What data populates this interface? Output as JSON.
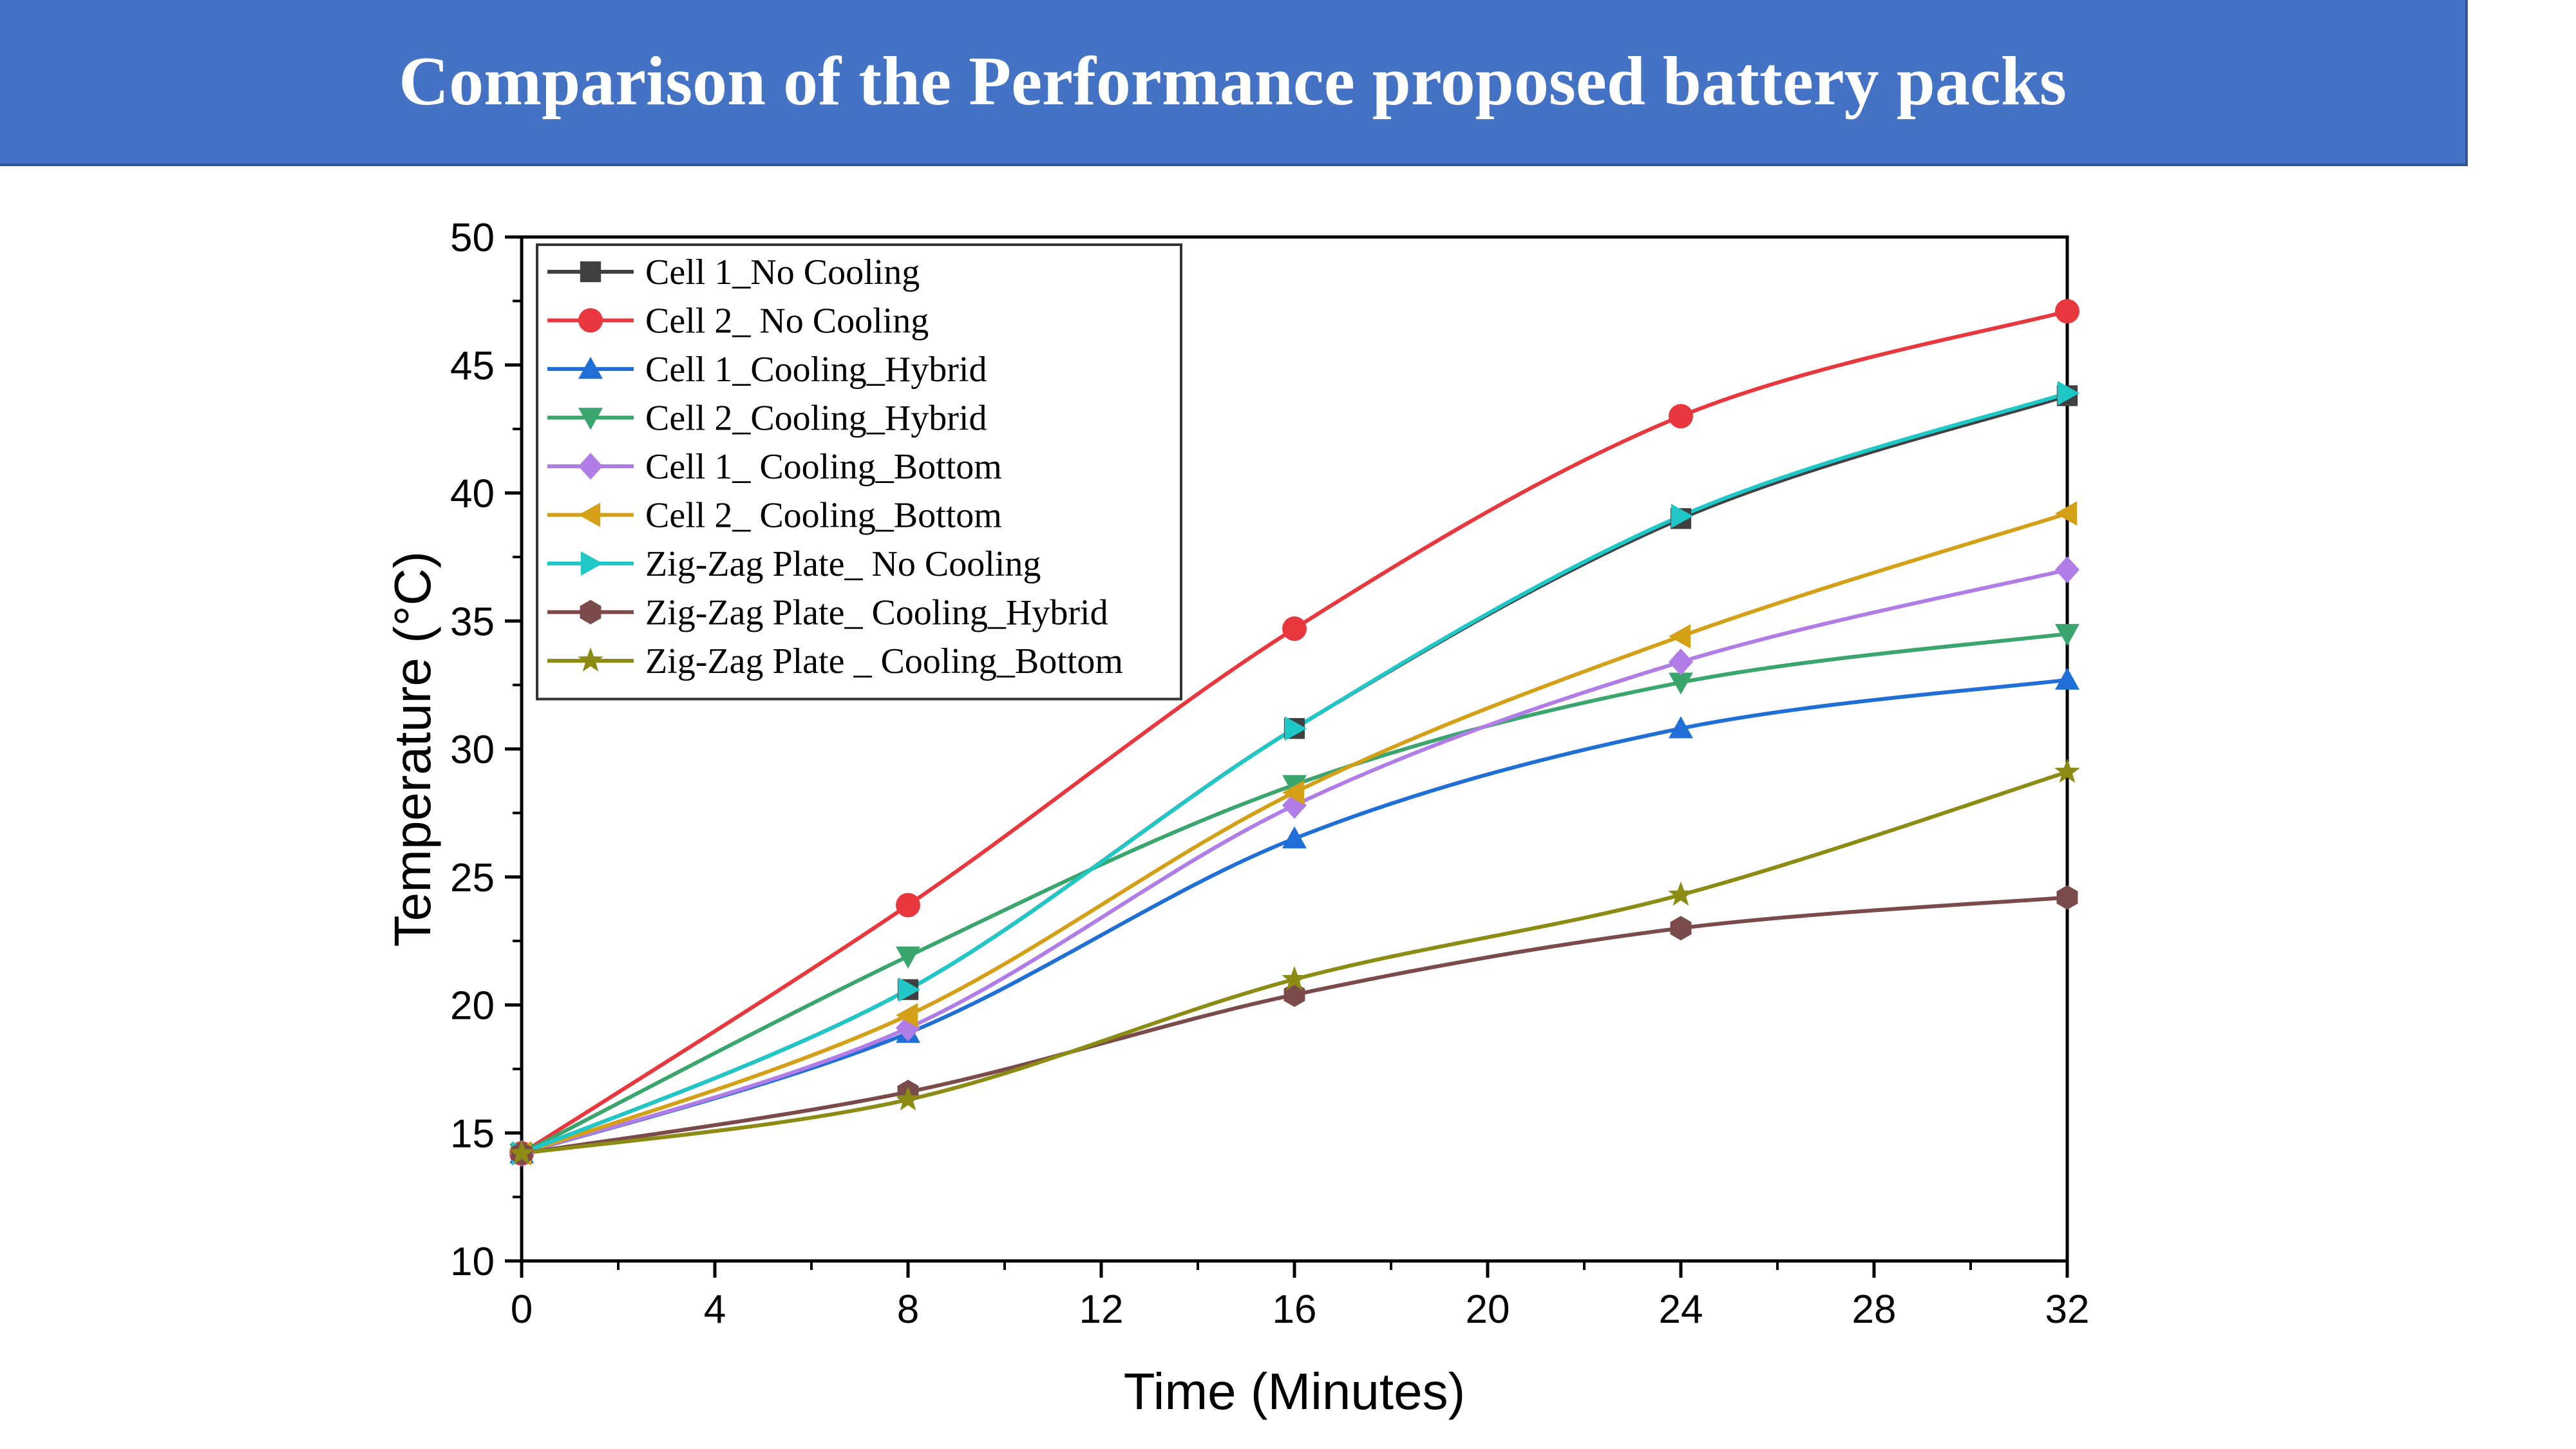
{
  "slide": {
    "title": "Comparison of the Performance proposed battery packs"
  },
  "chart_data": {
    "type": "line",
    "title": "",
    "xlabel": "Time (Minutes)",
    "ylabel": "Temperature (°C)",
    "xlim": [
      0,
      32
    ],
    "ylim": [
      10,
      50
    ],
    "x_ticks": [
      0,
      4,
      8,
      12,
      16,
      20,
      24,
      28,
      32
    ],
    "y_ticks": [
      10,
      15,
      20,
      25,
      30,
      35,
      40,
      45,
      50
    ],
    "grid": false,
    "legend_position": "top-left",
    "x": [
      0,
      8,
      16,
      24,
      32
    ],
    "series": [
      {
        "name": "Cell 1_No Cooling",
        "color": "#404040",
        "marker": "square",
        "values": [
          14.2,
          20.6,
          30.8,
          39.0,
          43.8
        ]
      },
      {
        "name": "Cell 2_ No Cooling",
        "color": "#e8383d",
        "marker": "circle",
        "values": [
          14.2,
          23.9,
          34.7,
          43.0,
          47.1
        ]
      },
      {
        "name": "Cell 1_Cooling_Hybrid",
        "color": "#1f6fd6",
        "marker": "triangle-up",
        "values": [
          14.2,
          18.9,
          26.5,
          30.8,
          32.7
        ]
      },
      {
        "name": "Cell 2_Cooling_Hybrid",
        "color": "#3aa66e",
        "marker": "triangle-down",
        "values": [
          14.2,
          21.9,
          28.6,
          32.6,
          34.5
        ]
      },
      {
        "name": "Cell 1_ Cooling_Bottom",
        "color": "#b07de6",
        "marker": "diamond",
        "values": [
          14.2,
          19.1,
          27.8,
          33.4,
          37.0
        ]
      },
      {
        "name": "Cell 2_ Cooling_Bottom",
        "color": "#d4a017",
        "marker": "triangle-left",
        "values": [
          14.2,
          19.6,
          28.3,
          34.4,
          39.2
        ]
      },
      {
        "name": "Zig-Zag Plate_ No Cooling",
        "color": "#1fc7c7",
        "marker": "triangle-right",
        "values": [
          14.2,
          20.6,
          30.8,
          39.1,
          43.9
        ]
      },
      {
        "name": "Zig-Zag Plate_ Cooling_Hybrid",
        "color": "#7b4a4a",
        "marker": "hexagon",
        "values": [
          14.2,
          16.6,
          20.4,
          23.0,
          24.2
        ]
      },
      {
        "name": "Zig-Zag Plate _ Cooling_Bottom",
        "color": "#8c8c14",
        "marker": "star",
        "values": [
          14.2,
          16.3,
          21.0,
          24.3,
          29.1
        ]
      }
    ]
  }
}
